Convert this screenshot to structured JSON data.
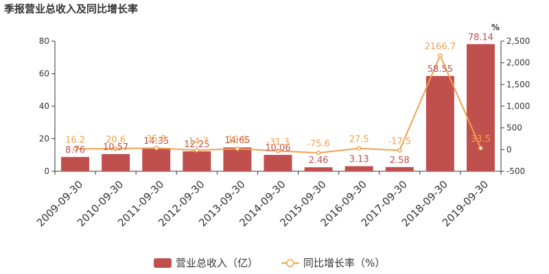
{
  "chart_data": {
    "type": "bar+line",
    "title": "季报营业总收入及同比增长率",
    "categories": [
      "2009-09-30",
      "2010-09-30",
      "2011-09-30",
      "2012-09-30",
      "2013-09-30",
      "2014-09-30",
      "2015-09-30",
      "2016-09-30",
      "2017-09-30",
      "2018-09-30",
      "2019-09-30"
    ],
    "series": [
      {
        "name": "营业总收入（亿）",
        "type": "bar",
        "axis": "left",
        "color": "#c0504d",
        "values": [
          8.76,
          10.57,
          14.35,
          12.25,
          14.65,
          10.06,
          2.46,
          3.13,
          2.58,
          58.55,
          78.14
        ],
        "labels": [
          "8.76",
          "10.57",
          "14.35",
          "12.25",
          "14.65",
          "10.06",
          "2.46",
          "3.13",
          "2.58",
          "58.55",
          "78.14"
        ]
      },
      {
        "name": "同比增长率（%）",
        "type": "line",
        "axis": "right",
        "color": "#f2a04b",
        "values": [
          16.2,
          20.6,
          35.8,
          -14.7,
          19.6,
          -31.3,
          -75.6,
          27.5,
          -17.5,
          2166.7,
          33.5
        ],
        "labels": [
          "16.2",
          "20.6",
          "35.8",
          "-14.7",
          "19.6",
          "-31.3",
          "-75.6",
          "27.5",
          "-17.5",
          "2166.7",
          "33.5"
        ]
      }
    ],
    "y_left": {
      "ylim": [
        0,
        80
      ],
      "ticks": [
        "0",
        "20",
        "40",
        "60",
        "80"
      ]
    },
    "y_right": {
      "ylim": [
        -500,
        2500
      ],
      "unit": "%",
      "ticks": [
        "-500",
        "0",
        "500",
        "1,000",
        "1,500",
        "2,000",
        "2,500"
      ]
    },
    "legend_position": "bottom-center",
    "grid": false
  }
}
